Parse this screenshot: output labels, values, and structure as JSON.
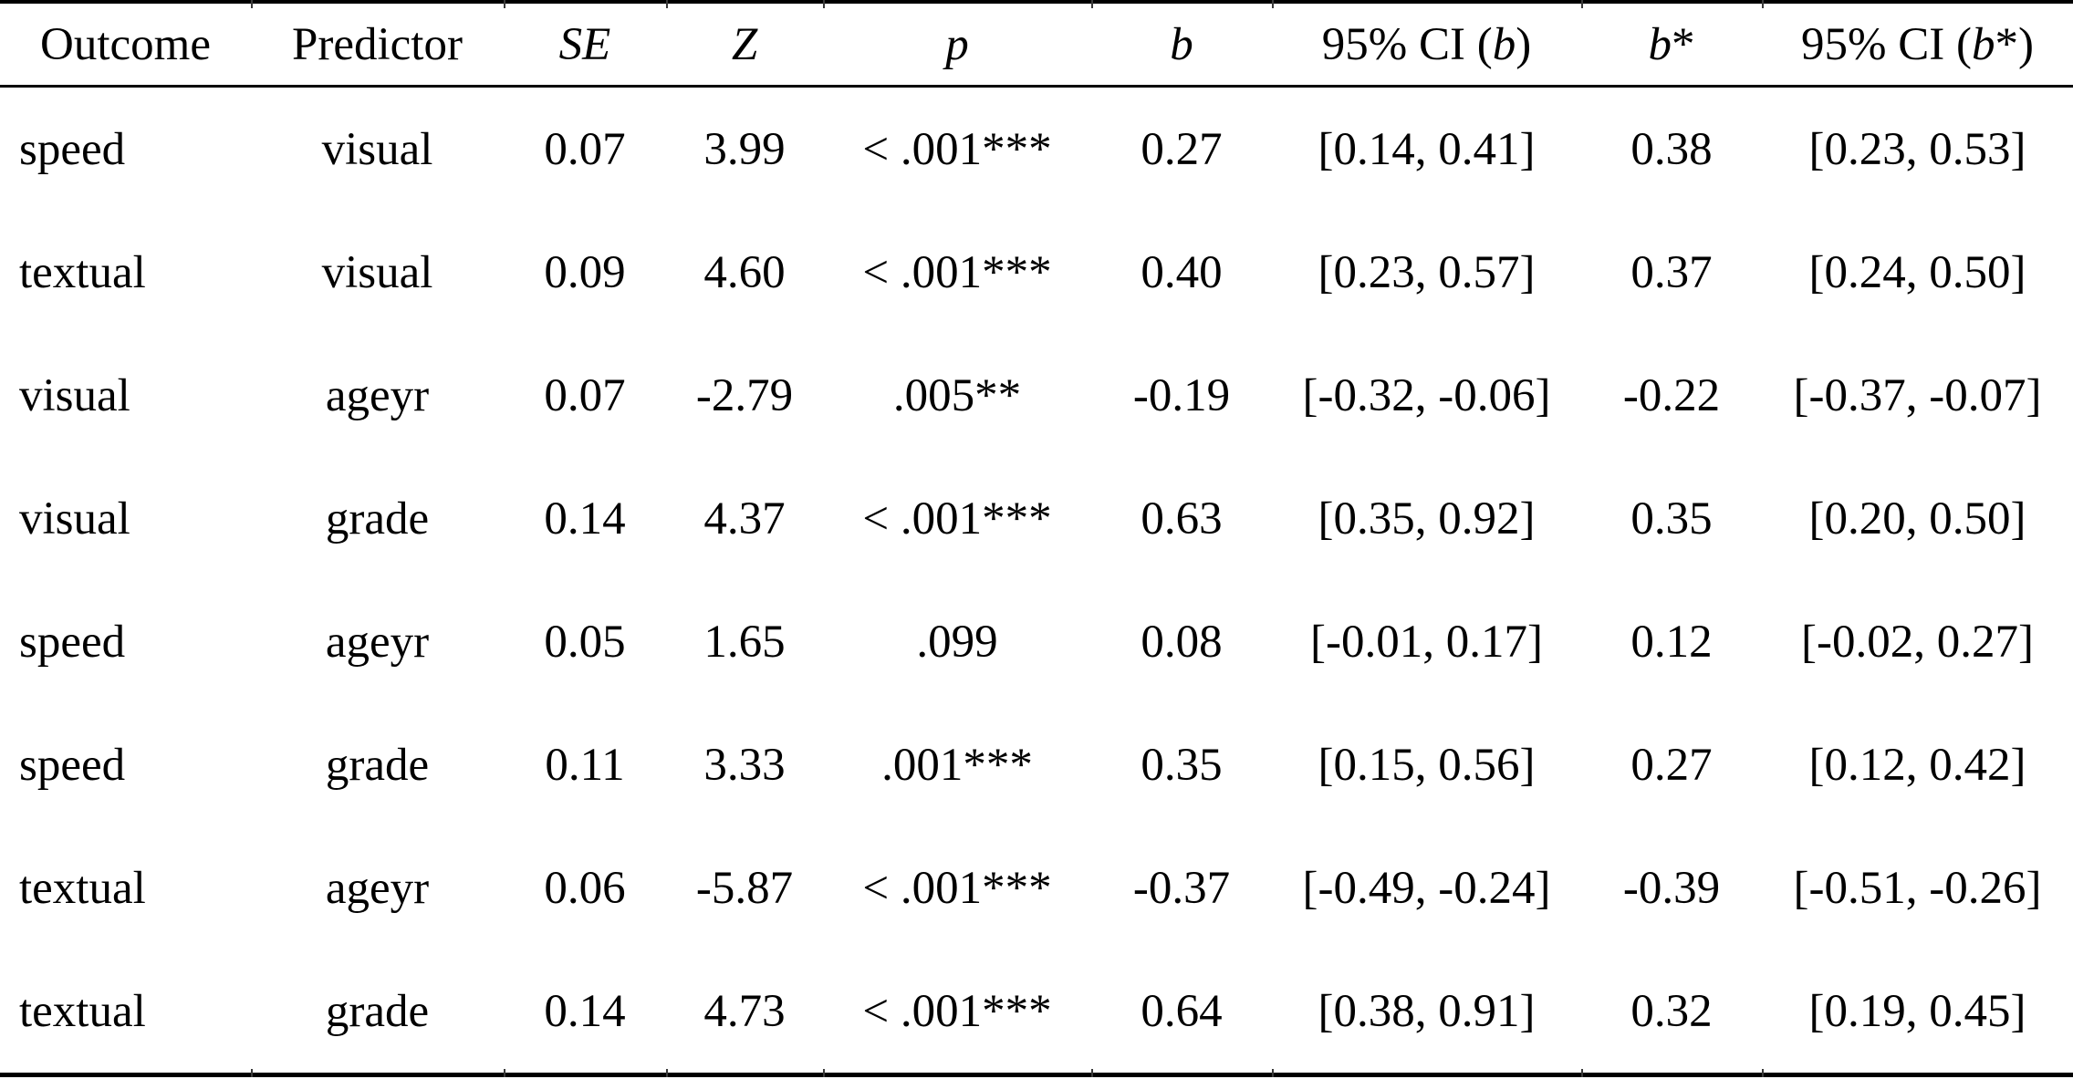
{
  "page": {
    "background": "#ffffff",
    "text_color": "#000000",
    "rule_color": "#000000"
  },
  "table": {
    "header": [
      {
        "parts": [
          {
            "text": "Outcome",
            "italic": false
          }
        ]
      },
      {
        "parts": [
          {
            "text": "Predictor",
            "italic": false
          }
        ]
      },
      {
        "parts": [
          {
            "text": "SE",
            "italic": true
          }
        ]
      },
      {
        "parts": [
          {
            "text": "Z",
            "italic": true
          }
        ]
      },
      {
        "parts": [
          {
            "text": "p",
            "italic": true
          }
        ]
      },
      {
        "parts": [
          {
            "text": "b",
            "italic": true
          }
        ]
      },
      {
        "parts": [
          {
            "text": "95% CI (",
            "italic": false
          },
          {
            "text": "b",
            "italic": true
          },
          {
            "text": ")",
            "italic": false
          }
        ]
      },
      {
        "parts": [
          {
            "text": "b",
            "italic": true
          },
          {
            "text": "*",
            "italic": false
          }
        ]
      },
      {
        "parts": [
          {
            "text": "95% CI (",
            "italic": false
          },
          {
            "text": "b",
            "italic": true
          },
          {
            "text": "*)",
            "italic": false
          }
        ]
      }
    ],
    "rows": [
      [
        "speed",
        "visual",
        "0.07",
        "3.99",
        "< .001***",
        "0.27",
        "[0.14, 0.41]",
        "0.38",
        "[0.23, 0.53]"
      ],
      [
        "textual",
        "visual",
        "0.09",
        "4.60",
        "< .001***",
        "0.40",
        "[0.23, 0.57]",
        "0.37",
        "[0.24, 0.50]"
      ],
      [
        "visual",
        "ageyr",
        "0.07",
        "-2.79",
        ".005**",
        "-0.19",
        "[-0.32, -0.06]",
        "-0.22",
        "[-0.37, -0.07]"
      ],
      [
        "visual",
        "grade",
        "0.14",
        "4.37",
        "< .001***",
        "0.63",
        "[0.35, 0.92]",
        "0.35",
        "[0.20, 0.50]"
      ],
      [
        "speed",
        "ageyr",
        "0.05",
        "1.65",
        ".099",
        "0.08",
        "[-0.01, 0.17]",
        "0.12",
        "[-0.02, 0.27]"
      ],
      [
        "speed",
        "grade",
        "0.11",
        "3.33",
        ".001***",
        "0.35",
        "[0.15, 0.56]",
        "0.27",
        "[0.12, 0.42]"
      ],
      [
        "textual",
        "ageyr",
        "0.06",
        "-5.87",
        "< .001***",
        "-0.37",
        "[-0.49, -0.24]",
        "-0.39",
        "[-0.51, -0.26]"
      ],
      [
        "textual",
        "grade",
        "0.14",
        "4.73",
        "< .001***",
        "0.64",
        "[0.38, 0.91]",
        "0.32",
        "[0.19, 0.45]"
      ]
    ]
  }
}
